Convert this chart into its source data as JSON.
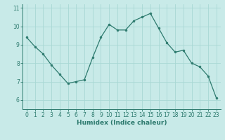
{
  "x": [
    0,
    1,
    2,
    3,
    4,
    5,
    6,
    7,
    8,
    9,
    10,
    11,
    12,
    13,
    14,
    15,
    16,
    17,
    18,
    19,
    20,
    21,
    22,
    23
  ],
  "y": [
    9.4,
    8.9,
    8.5,
    7.9,
    7.4,
    6.9,
    7.0,
    7.1,
    8.3,
    9.4,
    10.1,
    9.8,
    9.8,
    10.3,
    10.5,
    10.7,
    9.9,
    9.1,
    8.6,
    8.7,
    8.0,
    7.8,
    7.3,
    6.1
  ],
  "line_color": "#2d7a6e",
  "marker": "o",
  "marker_size": 2.0,
  "bg_color": "#c8eae8",
  "grid_color": "#a8d8d4",
  "axis_color": "#2d7a6e",
  "xlabel": "Humidex (Indice chaleur)",
  "xlim": [
    -0.5,
    23.5
  ],
  "ylim": [
    5.5,
    11.2
  ],
  "yticks": [
    6,
    7,
    8,
    9,
    10,
    11
  ],
  "xticks": [
    0,
    1,
    2,
    3,
    4,
    5,
    6,
    7,
    8,
    9,
    10,
    11,
    12,
    13,
    14,
    15,
    16,
    17,
    18,
    19,
    20,
    21,
    22,
    23
  ],
  "tick_fontsize": 5.5,
  "label_fontsize": 6.5,
  "linewidth": 0.9
}
